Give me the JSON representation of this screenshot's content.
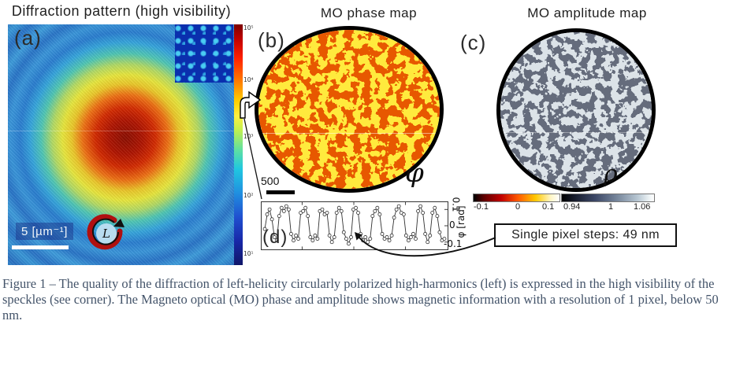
{
  "figure": {
    "titles": {
      "a": "Diffraction pattern (high visibility)",
      "b": "MO phase map",
      "c": "MO amplitude map"
    },
    "panel_a": {
      "label": "(a)",
      "scale_label": "5 [µm⁻¹]",
      "polarization_symbol": "L",
      "colorbar_ticks": [
        "10⁵",
        "10⁴",
        "10³",
        "10²",
        "10¹"
      ]
    },
    "panel_b": {
      "label": "(b)",
      "scale_label": "500",
      "map_symbol": "φ",
      "colorbar_ticks": [
        "-0.1",
        "0",
        "0.1"
      ]
    },
    "panel_c": {
      "label": "(c)",
      "map_symbol": "ρ",
      "colorbar_ticks": [
        "0.94",
        "1",
        "1.06"
      ]
    },
    "panel_d": {
      "label": "(d)",
      "y_ticks": [
        "0.1",
        "0",
        "-0.1"
      ],
      "y_axis_label": "φ [rad]",
      "annotation": "Single pixel steps: 49 nm"
    },
    "caption": "Figure 1 – The quality of the diffraction of left-helicity circularly polarized high-harmonics (left) is expressed in the high visibility of the speckles (see corner). The Magneto optical (MO) phase and amplitude shows magnetic information with a resolution of 1 pixel, below 50 nm."
  },
  "colors": {
    "phase_low": "#cc1a00",
    "phase_high": "#ffd10d",
    "amplitude_low": "#262b38",
    "amplitude_high": "#b6c3cb",
    "caption_text": "#44546a",
    "polarization_red": "#b01010"
  },
  "chart_data": {
    "type": "line",
    "title": "",
    "xlabel": "",
    "ylabel": "φ [rad]",
    "ylim": [
      -0.13,
      0.13
    ],
    "yticks": [
      0.1,
      0,
      -0.1
    ],
    "marker": "open-circle",
    "values": [
      -0.02,
      0.07,
      0.1,
      0.04,
      -0.07,
      -0.09,
      0.06,
      0.11,
      0.09,
      0.12,
      0.1,
      -0.05,
      -0.09,
      -0.06,
      -0.08,
      0.08,
      0.09,
      0.11,
      0.06,
      -0.07,
      -0.09,
      -0.06,
      -0.08,
      0.09,
      0.1,
      0.07,
      0.08,
      -0.06,
      -0.1,
      -0.07,
      0.08,
      0.11,
      0.09,
      -0.04,
      -0.08,
      -0.11,
      -0.07,
      0.1,
      0.11,
      0.08,
      -0.05,
      -0.09,
      -0.07,
      -0.1,
      -0.08,
      0.06,
      0.09,
      0.11,
      0.07,
      -0.05,
      -0.08,
      -0.07,
      -0.09,
      -0.06,
      0.05,
      0.1,
      0.12,
      0.08,
      0.07,
      -0.06,
      -0.09,
      -0.07,
      -0.05,
      -0.08,
      0.09,
      0.12,
      0.08,
      -0.05,
      -0.1,
      -0.06,
      0.08,
      0.11,
      0.06,
      -0.04,
      -0.09,
      -0.08
    ]
  }
}
